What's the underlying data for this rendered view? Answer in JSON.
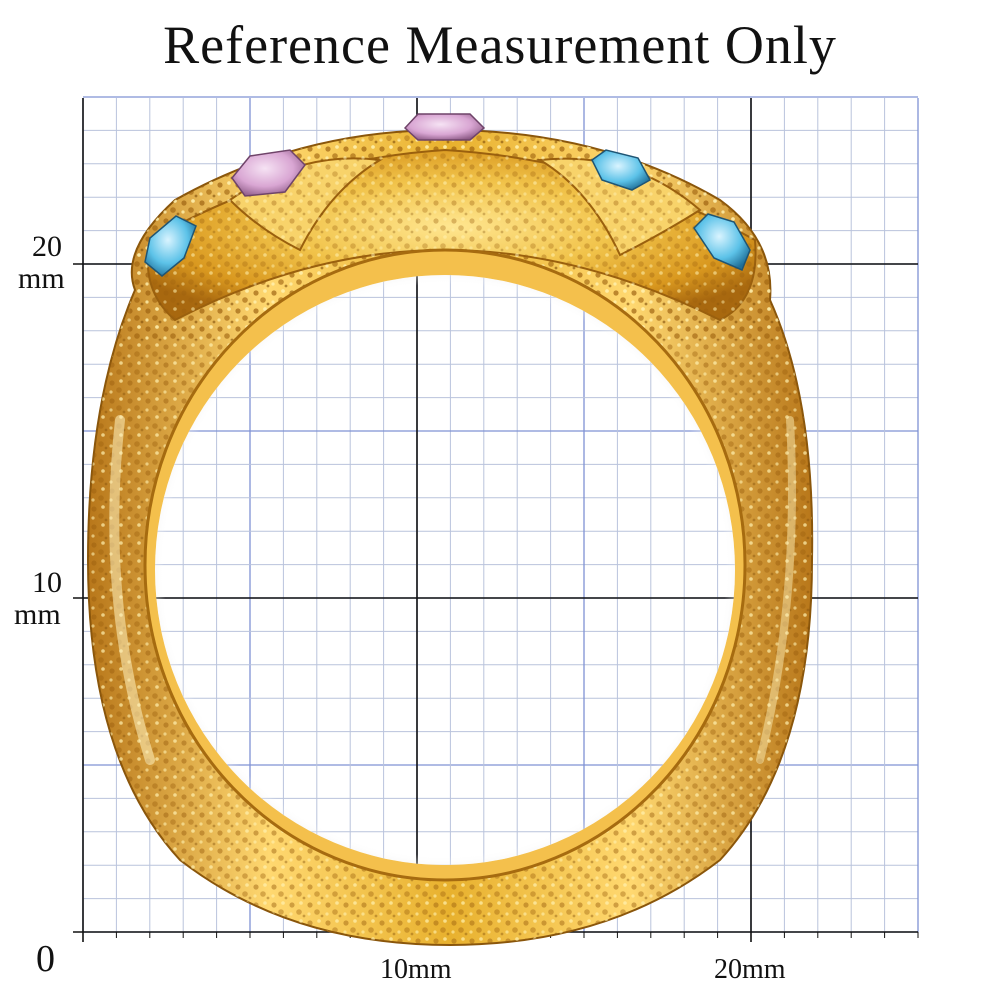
{
  "title": "Reference Measurement Only",
  "axis": {
    "y_labels": [
      {
        "value": "20",
        "unit": "mm"
      },
      {
        "value": "10",
        "unit": "mm"
      }
    ],
    "origin_label": "0",
    "x_labels": [
      "10mm",
      "20mm"
    ]
  },
  "colors": {
    "background": "#ffffff",
    "grid_minor": "#b9c3dc",
    "grid_major": "#111111",
    "grid_blue": "#7f92d4",
    "gold_light": "#ffe690",
    "gold_mid": "#e8b12e",
    "gold_dark": "#a8680f",
    "gem_pink": "#d9a6d3",
    "gem_blue": "#5cc2e8"
  },
  "subject": {
    "gems": [
      "pink",
      "pink",
      "blue",
      "blue",
      "blue"
    ]
  }
}
